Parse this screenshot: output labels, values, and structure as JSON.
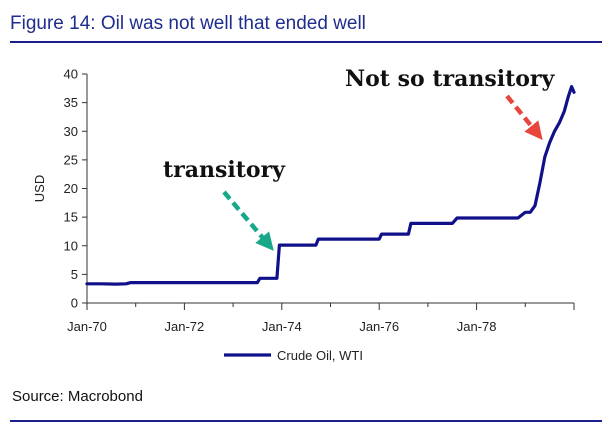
{
  "title": "Figure 14: Oil was not well that ended well",
  "source": "Source: Macrobond",
  "colors": {
    "line": "#10108a",
    "title": "#1f2d8c",
    "rule": "#1a1f8c",
    "arrow_green": "#17a88a",
    "arrow_red": "#e8453c"
  },
  "chart_data": {
    "type": "line",
    "ylabel": "USD",
    "ylim": [
      0,
      40
    ],
    "yticks": [
      0,
      5,
      10,
      15,
      20,
      25,
      30,
      35,
      40
    ],
    "xticks": [
      "Jan-70",
      "Jan-72",
      "Jan-74",
      "Jan-76",
      "Jan-78"
    ],
    "xlim": [
      1970,
      1980
    ],
    "grid": false,
    "legend_position": "bottom-center",
    "series": [
      {
        "name": "Crude Oil, WTI",
        "x": [
          1970.0,
          1970.3,
          1970.6,
          1970.8,
          1970.9,
          1971.0,
          1972.0,
          1973.0,
          1973.5,
          1973.55,
          1973.9,
          1973.95,
          1974.1,
          1974.7,
          1974.75,
          1975.0,
          1976.0,
          1976.05,
          1976.6,
          1976.65,
          1977.0,
          1977.5,
          1977.6,
          1977.7,
          1978.0,
          1978.5,
          1978.85,
          1979.0,
          1979.1,
          1979.2,
          1979.3,
          1979.4,
          1979.5,
          1979.6,
          1979.7,
          1979.8,
          1979.88,
          1979.95,
          1980.0
        ],
        "y": [
          3.35,
          3.35,
          3.3,
          3.35,
          3.56,
          3.56,
          3.56,
          3.56,
          3.56,
          4.31,
          4.31,
          10.11,
          10.11,
          10.11,
          11.16,
          11.16,
          11.16,
          12.03,
          12.03,
          13.9,
          13.9,
          13.9,
          14.85,
          14.85,
          14.85,
          14.85,
          14.85,
          15.85,
          15.85,
          17.0,
          21.0,
          25.5,
          28.0,
          30.0,
          31.5,
          33.5,
          36.0,
          37.8,
          36.8
        ]
      }
    ],
    "annotations": [
      {
        "text": "transitory",
        "arrow_color": "#17a88a"
      },
      {
        "text": "Not so transitory",
        "arrow_color": "#e8453c"
      }
    ]
  }
}
